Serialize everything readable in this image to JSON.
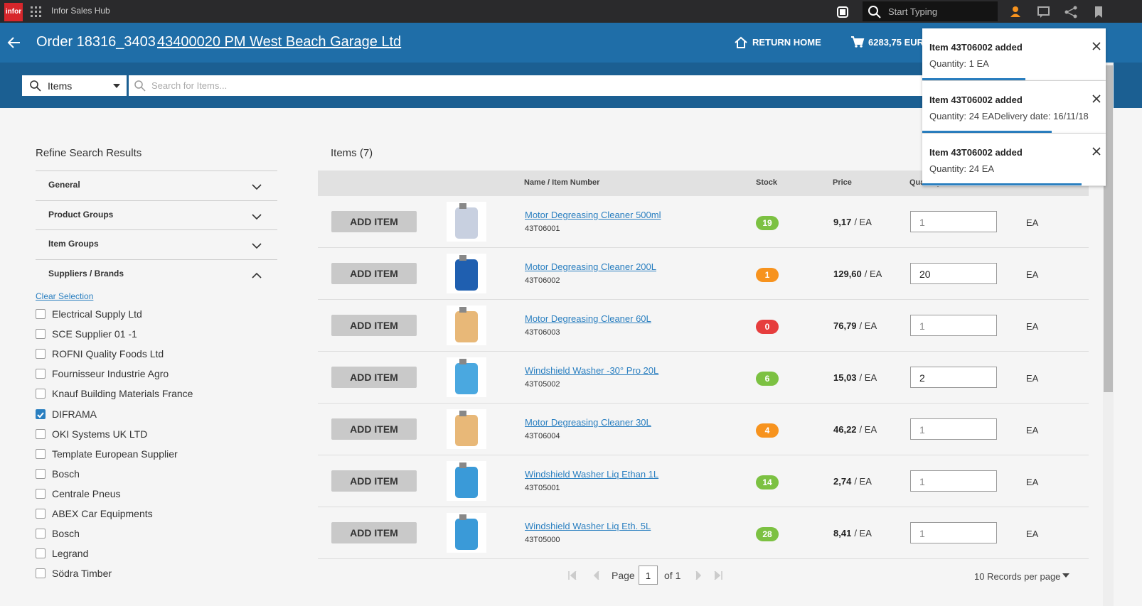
{
  "topbar": {
    "logo": "infor",
    "app_name": "Infor Sales Hub",
    "search_placeholder": "Start Typing"
  },
  "header": {
    "order": "Order 18316_3403",
    "customer": "43400020 PM West Beach Garage Ltd",
    "return_home": "RETURN HOME",
    "cart_total": "6283,75 EUR"
  },
  "search": {
    "scope": "Items",
    "placeholder": "Search for Items..."
  },
  "refine": {
    "title": "Refine Search Results",
    "sections": [
      {
        "label": "General",
        "open": false
      },
      {
        "label": "Product Groups",
        "open": false
      },
      {
        "label": "Item Groups",
        "open": false
      },
      {
        "label": "Suppliers / Brands",
        "open": true
      }
    ],
    "clear": "Clear Selection",
    "suppliers": [
      {
        "label": "Electrical Supply Ltd",
        "checked": false
      },
      {
        "label": "SCE Supplier 01 -1",
        "checked": false
      },
      {
        "label": "ROFNI Quality Foods Ltd",
        "checked": false
      },
      {
        "label": "Fournisseur Industrie Agro",
        "checked": false
      },
      {
        "label": "Knauf Building Materials France",
        "checked": false
      },
      {
        "label": "DIFRAMA",
        "checked": true
      },
      {
        "label": "OKI Systems UK LTD",
        "checked": false
      },
      {
        "label": "Template European Supplier",
        "checked": false
      },
      {
        "label": "Bosch",
        "checked": false
      },
      {
        "label": "Centrale Pneus",
        "checked": false
      },
      {
        "label": "ABEX Car Equipments",
        "checked": false
      },
      {
        "label": "Bosch",
        "checked": false
      },
      {
        "label": "Legrand",
        "checked": false
      },
      {
        "label": "Södra Timber",
        "checked": false
      }
    ]
  },
  "items": {
    "title": "Items (7)",
    "columns": [
      "Name / Item Number",
      "Stock",
      "Price",
      "Quantity"
    ],
    "rows": [
      {
        "button": "ADD ITEM",
        "name": "Motor Degreasing Cleaner 500ml",
        "number": "43T06001",
        "stock": 19,
        "stock_color": "#7cc142",
        "price": "9,17",
        "price_unit": "/ EA",
        "quantity": 1,
        "uom": "EA"
      },
      {
        "button": "ADD ITEM",
        "name": "Motor Degreasing Cleaner 200L",
        "number": "43T06002",
        "stock": 1,
        "stock_color": "#f7931e",
        "price": "129,60",
        "price_unit": "/ EA",
        "quantity": 20,
        "uom": "EA"
      },
      {
        "button": "ADD ITEM",
        "name": "Motor Degreasing Cleaner 60L",
        "number": "43T06003",
        "stock": 0,
        "stock_color": "#e63d3d",
        "price": "76,79",
        "price_unit": "/ EA",
        "quantity": 1,
        "uom": "EA"
      },
      {
        "button": "ADD ITEM",
        "name": "Windshield Washer -30° Pro 20L",
        "number": "43T05002",
        "stock": 6,
        "stock_color": "#7cc142",
        "price": "15,03",
        "price_unit": "/ EA",
        "quantity": 2,
        "uom": "EA"
      },
      {
        "button": "ADD ITEM",
        "name": "Motor Degreasing Cleaner 30L",
        "number": "43T06004",
        "stock": 4,
        "stock_color": "#f7931e",
        "price": "46,22",
        "price_unit": "/ EA",
        "quantity": 1,
        "uom": "EA"
      },
      {
        "button": "ADD ITEM",
        "name": "Windshield Washer Liq Ethan 1L",
        "number": "43T05001",
        "stock": 14,
        "stock_color": "#7cc142",
        "price": "2,74",
        "price_unit": "/ EA",
        "quantity": 1,
        "uom": "EA"
      },
      {
        "button": "ADD ITEM",
        "name": "Windshield Washer Liq Eth. 5L",
        "number": "43T05000",
        "stock": 28,
        "stock_color": "#7cc142",
        "price": "8,41",
        "price_unit": "/ EA",
        "quantity": 1,
        "uom": "EA"
      }
    ]
  },
  "pagination": {
    "page_label": "Page",
    "page": 1,
    "of": "of 1",
    "per_page": "10 Records per page"
  },
  "toasts": [
    {
      "title": "Item 43T06002 added",
      "detail": "Quantity: 1 EA"
    },
    {
      "title": "Item 43T06002 added",
      "detail": "Quantity: 24 EADelivery date: 16/11/18"
    },
    {
      "title": "Item 43T06002 added",
      "detail": "Quantity: 24 EA"
    }
  ]
}
